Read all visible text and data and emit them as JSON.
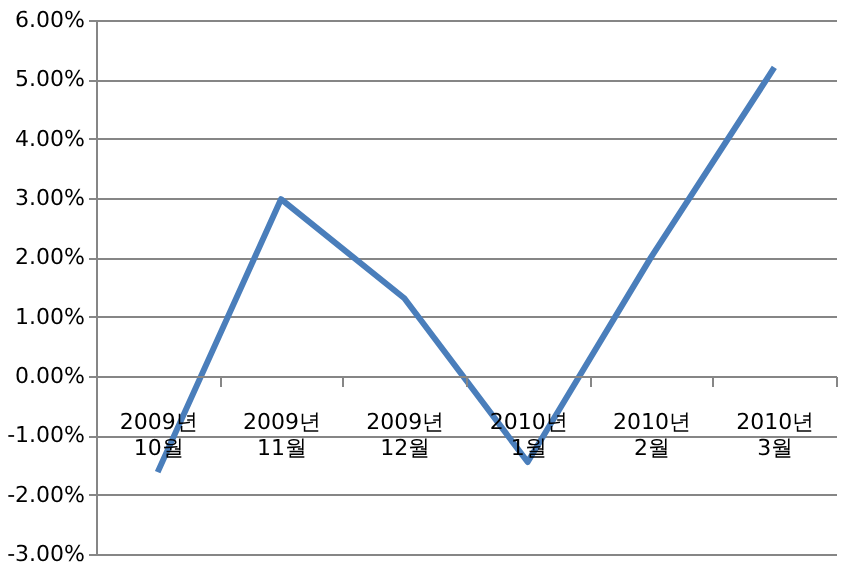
{
  "chart_data": {
    "type": "line",
    "categories": [
      "2009년\n10월",
      "2009년\n11월",
      "2009년\n12월",
      "2010년\n1월",
      "2010년\n2월",
      "2010년\n3월"
    ],
    "series": [
      {
        "color": "#4a7ebb",
        "values": [
          -1.62,
          2.98,
          1.31,
          -1.45,
          2.0,
          5.2
        ]
      }
    ],
    "ylim": [
      -3,
      6
    ],
    "yticks": [
      {
        "value": -3,
        "label": "-3.00%"
      },
      {
        "value": -2,
        "label": "-2.00%"
      },
      {
        "value": -1,
        "label": "-1.00%"
      },
      {
        "value": 0,
        "label": "0.00%"
      },
      {
        "value": 1,
        "label": "1.00%"
      },
      {
        "value": 2,
        "label": "2.00%"
      },
      {
        "value": 3,
        "label": "3.00%"
      },
      {
        "value": 4,
        "label": "4.00%"
      },
      {
        "value": 5,
        "label": "5.00%"
      },
      {
        "value": 6,
        "label": "6.00%"
      }
    ],
    "grid": "y",
    "marker": "none",
    "line_style": "solid"
  }
}
